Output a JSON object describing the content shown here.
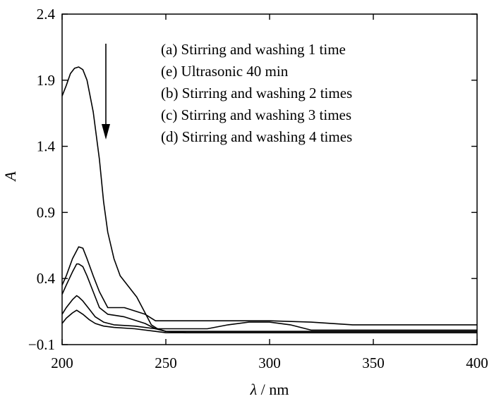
{
  "chart_data": {
    "type": "line",
    "xlabel_symbol": "λ",
    "xlabel_unit": " / nm",
    "ylabel": "A",
    "xlim": [
      200,
      400
    ],
    "ylim": [
      -0.1,
      2.4
    ],
    "xticks": [
      "200",
      "250",
      "300",
      "350",
      "400"
    ],
    "yticks": [
      "−0.1",
      "0.4",
      "0.9",
      "1.4",
      "1.9",
      "2.4"
    ],
    "legend": [
      "(a) Stirring and washing 1 time",
      "(e) Ultrasonic 40 min",
      "(b) Stirring and washing 2 times",
      "(c) Stirring and washing 3 times",
      "(d) Stirring and washing 4 times"
    ],
    "annotation": "downward arrow indicating decreasing absorbance",
    "series": [
      {
        "id": "a",
        "x": [
          200,
          202,
          204,
          206,
          208,
          210,
          212,
          215,
          218,
          220,
          222,
          225,
          228,
          232,
          236,
          240,
          243,
          246,
          250,
          260,
          300,
          340,
          370,
          400
        ],
        "y": [
          1.78,
          1.86,
          1.95,
          1.99,
          2.0,
          1.98,
          1.9,
          1.66,
          1.3,
          0.98,
          0.75,
          0.55,
          0.42,
          0.34,
          0.26,
          0.14,
          0.05,
          0.02,
          0.0,
          -0.01,
          -0.01,
          -0.01,
          -0.01,
          -0.01
        ]
      },
      {
        "id": "e",
        "x": [
          200,
          202,
          205,
          208,
          210,
          212,
          215,
          218,
          222,
          226,
          230,
          240,
          245,
          250,
          270,
          290,
          300,
          320,
          340,
          360,
          380,
          400
        ],
        "y": [
          0.35,
          0.42,
          0.55,
          0.64,
          0.63,
          0.55,
          0.42,
          0.3,
          0.18,
          0.18,
          0.18,
          0.13,
          0.08,
          0.08,
          0.08,
          0.08,
          0.08,
          0.07,
          0.05,
          0.05,
          0.05,
          0.05
        ]
      },
      {
        "id": "b",
        "x": [
          200,
          202,
          205,
          207,
          208,
          210,
          212,
          215,
          218,
          222,
          226,
          230,
          240,
          245,
          250,
          270,
          280,
          290,
          295,
          300,
          310,
          320,
          380,
          400
        ],
        "y": [
          0.28,
          0.35,
          0.45,
          0.51,
          0.51,
          0.49,
          0.42,
          0.3,
          0.18,
          0.13,
          0.12,
          0.11,
          0.06,
          0.02,
          0.02,
          0.02,
          0.05,
          0.07,
          0.07,
          0.07,
          0.05,
          0.01,
          0.01,
          0.01
        ]
      },
      {
        "id": "c",
        "x": [
          200,
          202,
          205,
          207,
          208,
          210,
          213,
          216,
          220,
          225,
          235,
          245,
          250,
          260,
          300,
          400
        ],
        "y": [
          0.13,
          0.18,
          0.24,
          0.27,
          0.26,
          0.23,
          0.17,
          0.11,
          0.07,
          0.05,
          0.04,
          0.02,
          0.0,
          0.0,
          0.0,
          0.0
        ]
      },
      {
        "id": "d",
        "x": [
          200,
          202,
          205,
          207,
          208,
          210,
          213,
          216,
          220,
          225,
          235,
          245,
          250,
          300,
          400
        ],
        "y": [
          0.06,
          0.1,
          0.14,
          0.16,
          0.15,
          0.13,
          0.09,
          0.06,
          0.04,
          0.03,
          0.02,
          0.0,
          -0.01,
          -0.01,
          -0.01
        ]
      }
    ]
  }
}
